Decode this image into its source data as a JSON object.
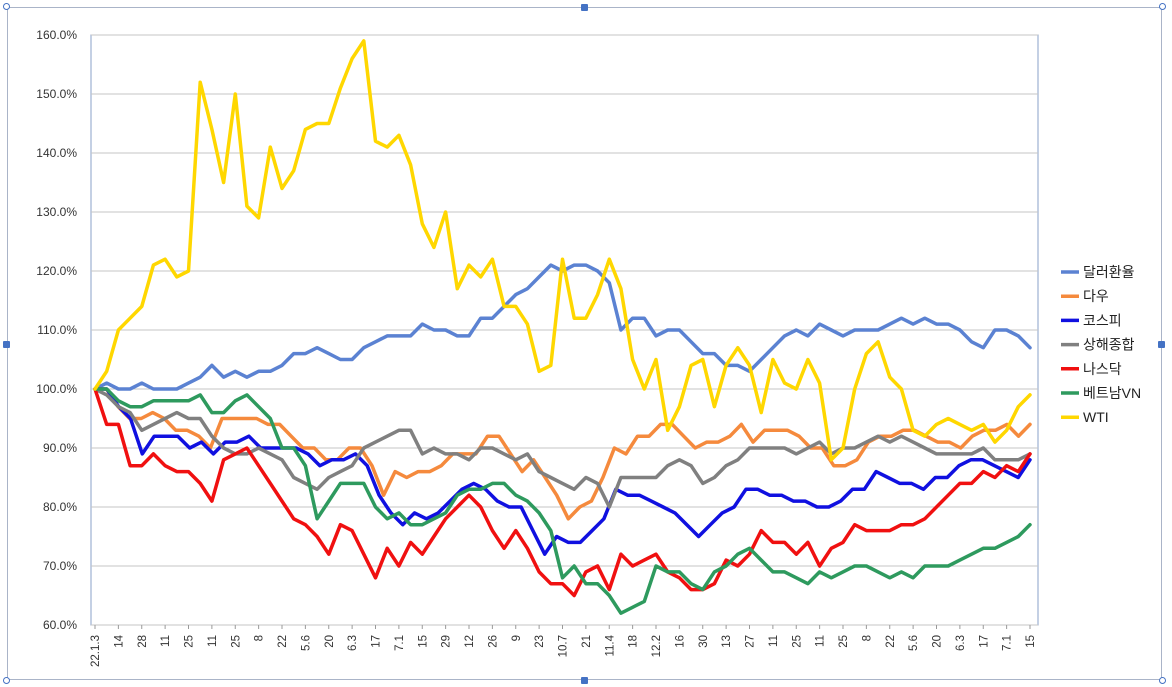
{
  "chart_data": {
    "type": "line",
    "ylim": [
      0.6,
      1.6
    ],
    "yticks": [
      "60.0%",
      "70.0%",
      "80.0%",
      "90.0%",
      "100.0%",
      "110.0%",
      "120.0%",
      "130.0%",
      "140.0%",
      "150.0%",
      "160.0%"
    ],
    "x_ticks": [
      "22.1.3",
      "14",
      "28",
      "11",
      "25",
      "11",
      "25",
      "8",
      "22",
      "5.6",
      "20",
      "6.3",
      "17",
      "7.1",
      "15",
      "29",
      "12",
      "26",
      "9",
      "23",
      "10.7",
      "21",
      "11.4",
      "18",
      "12.2",
      "16",
      "30",
      "13",
      "27",
      "11",
      "25",
      "11",
      "25",
      "8",
      "22",
      "5.6",
      "20",
      "6.3",
      "17",
      "7.1",
      "15"
    ],
    "legend": [
      "달러환율",
      "다우",
      "코스피",
      "상해종합",
      "나스닥",
      "베트남VN",
      "WTI"
    ],
    "grid": "horizontal",
    "legend_position": "right",
    "series": [
      {
        "name": "달러환율",
        "color": "#5b82d2",
        "values": [
          1.0,
          1.01,
          1.0,
          1.0,
          1.01,
          1.0,
          1.0,
          1.0,
          1.01,
          1.02,
          1.04,
          1.02,
          1.03,
          1.02,
          1.03,
          1.03,
          1.04,
          1.06,
          1.06,
          1.07,
          1.06,
          1.05,
          1.05,
          1.07,
          1.08,
          1.09,
          1.09,
          1.09,
          1.11,
          1.1,
          1.1,
          1.09,
          1.09,
          1.12,
          1.12,
          1.14,
          1.16,
          1.17,
          1.19,
          1.21,
          1.2,
          1.21,
          1.21,
          1.2,
          1.18,
          1.1,
          1.12,
          1.12,
          1.09,
          1.1,
          1.1,
          1.08,
          1.06,
          1.06,
          1.04,
          1.04,
          1.03,
          1.05,
          1.07,
          1.09,
          1.1,
          1.09,
          1.11,
          1.1,
          1.09,
          1.1,
          1.1,
          1.1,
          1.11,
          1.12,
          1.11,
          1.12,
          1.11,
          1.11,
          1.1,
          1.08,
          1.07,
          1.1,
          1.1,
          1.09,
          1.07
        ]
      },
      {
        "name": "다우",
        "color": "#f58a3d",
        "values": [
          1.0,
          1.0,
          0.97,
          0.95,
          0.95,
          0.96,
          0.95,
          0.93,
          0.93,
          0.92,
          0.9,
          0.95,
          0.95,
          0.95,
          0.95,
          0.94,
          0.94,
          0.92,
          0.9,
          0.9,
          0.88,
          0.88,
          0.9,
          0.9,
          0.87,
          0.82,
          0.86,
          0.85,
          0.86,
          0.86,
          0.87,
          0.89,
          0.89,
          0.89,
          0.92,
          0.92,
          0.89,
          0.86,
          0.88,
          0.85,
          0.82,
          0.78,
          0.8,
          0.81,
          0.85,
          0.9,
          0.89,
          0.92,
          0.92,
          0.94,
          0.94,
          0.92,
          0.9,
          0.91,
          0.91,
          0.92,
          0.94,
          0.91,
          0.93,
          0.93,
          0.93,
          0.92,
          0.9,
          0.9,
          0.87,
          0.87,
          0.88,
          0.91,
          0.92,
          0.92,
          0.93,
          0.93,
          0.92,
          0.91,
          0.91,
          0.9,
          0.92,
          0.93,
          0.93,
          0.94,
          0.92,
          0.94
        ]
      },
      {
        "name": "코스피",
        "color": "#1010e0",
        "values": [
          1.0,
          1.0,
          0.97,
          0.95,
          0.89,
          0.92,
          0.92,
          0.92,
          0.9,
          0.91,
          0.89,
          0.91,
          0.91,
          0.92,
          0.9,
          0.9,
          0.9,
          0.9,
          0.89,
          0.87,
          0.88,
          0.88,
          0.89,
          0.87,
          0.82,
          0.79,
          0.77,
          0.79,
          0.78,
          0.79,
          0.81,
          0.83,
          0.84,
          0.83,
          0.81,
          0.8,
          0.8,
          0.76,
          0.72,
          0.75,
          0.74,
          0.74,
          0.76,
          0.78,
          0.83,
          0.82,
          0.82,
          0.81,
          0.8,
          0.79,
          0.77,
          0.75,
          0.77,
          0.79,
          0.8,
          0.83,
          0.83,
          0.82,
          0.82,
          0.81,
          0.81,
          0.8,
          0.8,
          0.81,
          0.83,
          0.83,
          0.86,
          0.85,
          0.84,
          0.84,
          0.83,
          0.85,
          0.85,
          0.87,
          0.88,
          0.88,
          0.87,
          0.86,
          0.85,
          0.88
        ]
      },
      {
        "name": "상해종합",
        "color": "#808080",
        "values": [
          1.0,
          0.99,
          0.97,
          0.96,
          0.93,
          0.94,
          0.95,
          0.96,
          0.95,
          0.95,
          0.92,
          0.9,
          0.89,
          0.89,
          0.9,
          0.89,
          0.88,
          0.85,
          0.84,
          0.83,
          0.85,
          0.86,
          0.87,
          0.9,
          0.91,
          0.92,
          0.93,
          0.93,
          0.89,
          0.9,
          0.89,
          0.89,
          0.88,
          0.9,
          0.9,
          0.89,
          0.88,
          0.89,
          0.86,
          0.85,
          0.84,
          0.83,
          0.85,
          0.84,
          0.8,
          0.85,
          0.85,
          0.85,
          0.85,
          0.87,
          0.88,
          0.87,
          0.84,
          0.85,
          0.87,
          0.88,
          0.9,
          0.9,
          0.9,
          0.9,
          0.89,
          0.9,
          0.91,
          0.89,
          0.9,
          0.9,
          0.91,
          0.92,
          0.91,
          0.92,
          0.91,
          0.9,
          0.89,
          0.89,
          0.89,
          0.89,
          0.9,
          0.88,
          0.88,
          0.88,
          0.89
        ]
      },
      {
        "name": "나스닥",
        "color": "#f01010",
        "values": [
          1.0,
          0.94,
          0.94,
          0.87,
          0.87,
          0.89,
          0.87,
          0.86,
          0.86,
          0.84,
          0.81,
          0.88,
          0.89,
          0.9,
          0.87,
          0.84,
          0.81,
          0.78,
          0.77,
          0.75,
          0.72,
          0.77,
          0.76,
          0.72,
          0.68,
          0.73,
          0.7,
          0.74,
          0.72,
          0.75,
          0.78,
          0.8,
          0.82,
          0.8,
          0.76,
          0.73,
          0.76,
          0.73,
          0.69,
          0.67,
          0.67,
          0.65,
          0.69,
          0.7,
          0.66,
          0.72,
          0.7,
          0.71,
          0.72,
          0.69,
          0.68,
          0.66,
          0.66,
          0.67,
          0.71,
          0.7,
          0.72,
          0.76,
          0.74,
          0.74,
          0.72,
          0.74,
          0.7,
          0.73,
          0.74,
          0.77,
          0.76,
          0.76,
          0.76,
          0.77,
          0.77,
          0.78,
          0.8,
          0.82,
          0.84,
          0.84,
          0.86,
          0.85,
          0.87,
          0.86,
          0.89
        ]
      },
      {
        "name": "베트남VN",
        "color": "#2e9a5e",
        "values": [
          1.0,
          1.0,
          0.98,
          0.97,
          0.97,
          0.98,
          0.98,
          0.98,
          0.98,
          0.99,
          0.96,
          0.96,
          0.98,
          0.99,
          0.97,
          0.95,
          0.9,
          0.9,
          0.87,
          0.78,
          0.81,
          0.84,
          0.84,
          0.84,
          0.8,
          0.78,
          0.79,
          0.77,
          0.77,
          0.78,
          0.79,
          0.82,
          0.83,
          0.83,
          0.84,
          0.84,
          0.82,
          0.81,
          0.79,
          0.76,
          0.68,
          0.7,
          0.67,
          0.67,
          0.65,
          0.62,
          0.63,
          0.64,
          0.7,
          0.69,
          0.69,
          0.67,
          0.66,
          0.69,
          0.7,
          0.72,
          0.73,
          0.71,
          0.69,
          0.69,
          0.68,
          0.67,
          0.69,
          0.68,
          0.69,
          0.7,
          0.7,
          0.69,
          0.68,
          0.69,
          0.68,
          0.7,
          0.7,
          0.7,
          0.71,
          0.72,
          0.73,
          0.73,
          0.74,
          0.75,
          0.77
        ]
      },
      {
        "name": "WTI",
        "color": "#ffd700",
        "values": [
          1.0,
          1.03,
          1.1,
          1.12,
          1.14,
          1.21,
          1.22,
          1.19,
          1.2,
          1.52,
          1.44,
          1.35,
          1.5,
          1.31,
          1.29,
          1.41,
          1.34,
          1.37,
          1.44,
          1.45,
          1.45,
          1.51,
          1.56,
          1.59,
          1.42,
          1.41,
          1.43,
          1.38,
          1.28,
          1.24,
          1.3,
          1.17,
          1.21,
          1.19,
          1.22,
          1.14,
          1.14,
          1.11,
          1.03,
          1.04,
          1.22,
          1.12,
          1.12,
          1.16,
          1.22,
          1.17,
          1.05,
          1.0,
          1.05,
          0.93,
          0.97,
          1.04,
          1.05,
          0.97,
          1.04,
          1.07,
          1.04,
          0.96,
          1.05,
          1.01,
          1.0,
          1.05,
          1.01,
          0.88,
          0.9,
          1.0,
          1.06,
          1.08,
          1.02,
          1.0,
          0.93,
          0.92,
          0.94,
          0.95,
          0.94,
          0.93,
          0.94,
          0.91,
          0.93,
          0.97,
          0.99
        ]
      }
    ]
  }
}
